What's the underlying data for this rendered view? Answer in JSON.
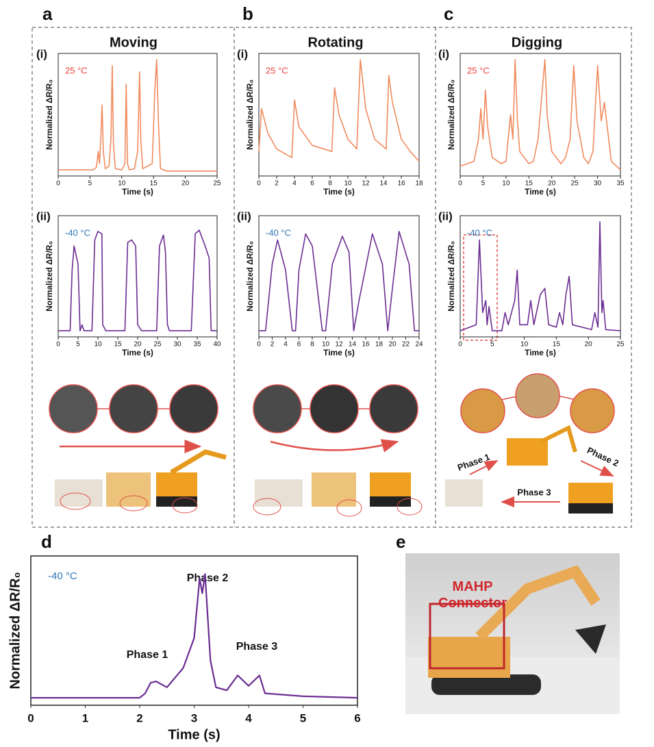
{
  "panels": [
    "a",
    "b",
    "c",
    "d",
    "e"
  ],
  "columns": [
    "Moving",
    "Rotating",
    "Digging"
  ],
  "photo_labels": {
    "phases": [
      "Phase 1",
      "Phase 2",
      "Phase 3"
    ],
    "connector": "MAHP Connector"
  },
  "chart_data": [
    {
      "type": "line",
      "panel": "(i)",
      "annotation": "25 °C",
      "annotation_color": "#e8423a",
      "xlabel": "Time (s)",
      "ylabel": "Normalized ΔR/R₀",
      "xlim": [
        0,
        25
      ],
      "xticks": [
        0,
        5,
        10,
        15,
        20,
        25
      ],
      "ylim": [
        0,
        1
      ],
      "x": [
        0,
        5.5,
        6,
        6.3,
        6.5,
        6.7,
        6.9,
        7.1,
        7.4,
        8,
        8.3,
        8.5,
        8.7,
        9,
        10,
        10.5,
        10.7,
        10.9,
        11.2,
        12,
        12.5,
        12.8,
        13,
        13.3,
        14.8,
        15.2,
        15.5,
        15.8,
        16.1,
        17,
        20,
        25
      ],
      "series": [
        {
          "color": "#f08a5d",
          "values": [
            0.05,
            0.05,
            0.07,
            0.2,
            0.1,
            0.3,
            0.58,
            0.2,
            0.06,
            0.08,
            0.3,
            0.9,
            0.25,
            0.06,
            0.05,
            0.1,
            0.75,
            0.1,
            0.05,
            0.06,
            0.2,
            0.85,
            0.3,
            0.06,
            0.1,
            0.7,
            0.95,
            0.4,
            0.06,
            0.04,
            0.04,
            0.04
          ]
        }
      ]
    },
    {
      "type": "line",
      "panel": "(ii)",
      "annotation": "-40 °C",
      "annotation_color": "#2e75b6",
      "xlabel": "Time (s)",
      "ylabel": "Normalized ΔR/R₀",
      "xlim": [
        0,
        40
      ],
      "xticks": [
        0,
        5,
        10,
        15,
        20,
        25,
        30,
        35,
        40
      ],
      "ylim": [
        0,
        1
      ],
      "x": [
        0,
        3,
        3.5,
        4,
        5,
        5.5,
        6,
        6.5,
        7,
        8.5,
        9.2,
        10,
        11,
        11.2,
        12,
        16.8,
        17.5,
        18.5,
        19.5,
        20,
        21,
        24.8,
        25.5,
        26.5,
        27,
        27.5,
        28,
        33.5,
        34.5,
        35.5,
        37,
        38,
        38.5,
        40
      ],
      "series": [
        {
          "color": "#6a2c91",
          "values": [
            0.05,
            0.05,
            0.55,
            0.75,
            0.6,
            0.05,
            0.1,
            0.05,
            0.05,
            0.05,
            0.8,
            0.87,
            0.85,
            0.1,
            0.05,
            0.05,
            0.78,
            0.8,
            0.75,
            0.1,
            0.05,
            0.05,
            0.75,
            0.84,
            0.7,
            0.1,
            0.05,
            0.05,
            0.85,
            0.88,
            0.75,
            0.65,
            0.05,
            0.05
          ]
        }
      ]
    },
    {
      "type": "line",
      "panel": "(i)",
      "annotation": "25 °C",
      "annotation_color": "#e8423a",
      "xlabel": "Time (s)",
      "ylabel": "Normalized ΔR/R₀",
      "xlim": [
        0,
        18
      ],
      "xticks": [
        0,
        2,
        4,
        6,
        8,
        10,
        12,
        14,
        16,
        18
      ],
      "ylim": [
        0,
        1
      ],
      "x": [
        0,
        0.3,
        1,
        2,
        3.7,
        4,
        4.5,
        6,
        8.2,
        8.5,
        9,
        10,
        11,
        11.4,
        12,
        13,
        14.3,
        14.6,
        15,
        16,
        17,
        18
      ],
      "series": [
        {
          "color": "#f08a5d",
          "values": [
            0.2,
            0.55,
            0.35,
            0.22,
            0.15,
            0.62,
            0.4,
            0.25,
            0.2,
            0.72,
            0.5,
            0.3,
            0.22,
            0.95,
            0.55,
            0.3,
            0.22,
            0.82,
            0.6,
            0.3,
            0.2,
            0.12
          ]
        }
      ]
    },
    {
      "type": "line",
      "panel": "(ii)",
      "annotation": "-40 °C",
      "annotation_color": "#2e75b6",
      "xlabel": "Time (s)",
      "ylabel": "Normalized ΔR/R₀",
      "xlim": [
        0,
        24
      ],
      "xticks": [
        0,
        2,
        4,
        6,
        8,
        10,
        12,
        14,
        16,
        18,
        20,
        22,
        24
      ],
      "ylim": [
        0,
        1
      ],
      "x": [
        0,
        1,
        2,
        2.8,
        4,
        5,
        5.5,
        6,
        7,
        8,
        9.5,
        10,
        11,
        12.5,
        13.5,
        14.2,
        15,
        17,
        18.5,
        19.3,
        20,
        21,
        22.5,
        23.3,
        24
      ],
      "series": [
        {
          "color": "#6a2c91",
          "values": [
            0.05,
            0.05,
            0.6,
            0.8,
            0.55,
            0.05,
            0.05,
            0.55,
            0.85,
            0.75,
            0.05,
            0.05,
            0.6,
            0.83,
            0.7,
            0.05,
            0.3,
            0.85,
            0.6,
            0.05,
            0.4,
            0.87,
            0.6,
            0.05,
            0.05
          ]
        }
      ]
    },
    {
      "type": "line",
      "panel": "(i)",
      "annotation": "25 °C",
      "annotation_color": "#e8423a",
      "xlabel": "Time (s)",
      "ylabel": "Normalized ΔR/R₀",
      "xlim": [
        0,
        35
      ],
      "xticks": [
        0,
        5,
        10,
        15,
        20,
        25,
        30,
        35
      ],
      "ylim": [
        0,
        1
      ],
      "x": [
        0,
        3,
        4,
        4.5,
        5,
        5.5,
        6,
        7,
        9,
        10,
        11,
        11.5,
        12,
        12.5,
        13,
        15,
        16,
        17,
        18.5,
        19,
        20,
        22,
        23,
        24,
        24.8,
        25.5,
        27,
        28,
        29,
        30,
        30.8,
        31.5,
        33,
        35
      ],
      "series": [
        {
          "color": "#f08a5d",
          "values": [
            0.08,
            0.12,
            0.3,
            0.55,
            0.3,
            0.7,
            0.4,
            0.15,
            0.1,
            0.12,
            0.5,
            0.3,
            0.95,
            0.45,
            0.2,
            0.1,
            0.12,
            0.3,
            0.95,
            0.5,
            0.2,
            0.1,
            0.15,
            0.3,
            0.9,
            0.45,
            0.15,
            0.1,
            0.2,
            0.9,
            0.45,
            0.6,
            0.12,
            0.05
          ]
        }
      ]
    },
    {
      "type": "line",
      "panel": "(ii)",
      "annotation": "-40 °C",
      "annotation_color": "#2e75b6",
      "xlabel": "Time (s)",
      "ylabel": "Normalized ΔR/R₀",
      "xlim": [
        0,
        25
      ],
      "xticks": [
        0,
        5,
        10,
        15,
        20,
        25
      ],
      "ylim": [
        0,
        1
      ],
      "x": [
        0,
        2.5,
        3,
        3.5,
        4,
        4.2,
        4.5,
        5,
        6.5,
        7,
        7.5,
        8.5,
        8.9,
        9.3,
        10.5,
        11,
        11.5,
        12.5,
        13.2,
        13.8,
        15,
        15.5,
        16,
        16.5,
        17,
        17.5,
        20.5,
        21,
        21.5,
        21.8,
        22.1,
        22.3,
        22.7,
        25
      ],
      "series": [
        {
          "color": "#6a2c91",
          "values": [
            0.05,
            0.1,
            0.8,
            0.2,
            0.3,
            0.1,
            0.25,
            0.05,
            0.05,
            0.2,
            0.1,
            0.3,
            0.55,
            0.1,
            0.1,
            0.3,
            0.1,
            0.35,
            0.4,
            0.1,
            0.08,
            0.2,
            0.1,
            0.35,
            0.5,
            0.1,
            0.06,
            0.2,
            0.08,
            0.95,
            0.2,
            0.3,
            0.06,
            0.05
          ]
        }
      ]
    },
    {
      "type": "line",
      "annotation": "-40 °C",
      "annotation_color": "#2e75b6",
      "xlabel": "Time (s)",
      "ylabel": "Normalized ΔR/R₀",
      "annotations": [
        "Phase 1",
        "Phase 2",
        "Phase 3"
      ],
      "xlim": [
        0,
        6
      ],
      "xticks": [
        0,
        1,
        2,
        3,
        4,
        5,
        6
      ],
      "ylim": [
        0,
        1
      ],
      "x": [
        0,
        1,
        2,
        2.1,
        2.2,
        2.3,
        2.5,
        2.8,
        3,
        3.1,
        3.15,
        3.2,
        3.3,
        3.4,
        3.6,
        3.8,
        4,
        4.2,
        4.3,
        5,
        6
      ],
      "series": [
        {
          "color": "#6a2c91",
          "values": [
            0.05,
            0.05,
            0.05,
            0.08,
            0.15,
            0.16,
            0.12,
            0.25,
            0.45,
            0.85,
            0.75,
            0.88,
            0.3,
            0.12,
            0.1,
            0.2,
            0.13,
            0.2,
            0.08,
            0.06,
            0.05
          ]
        }
      ]
    }
  ]
}
